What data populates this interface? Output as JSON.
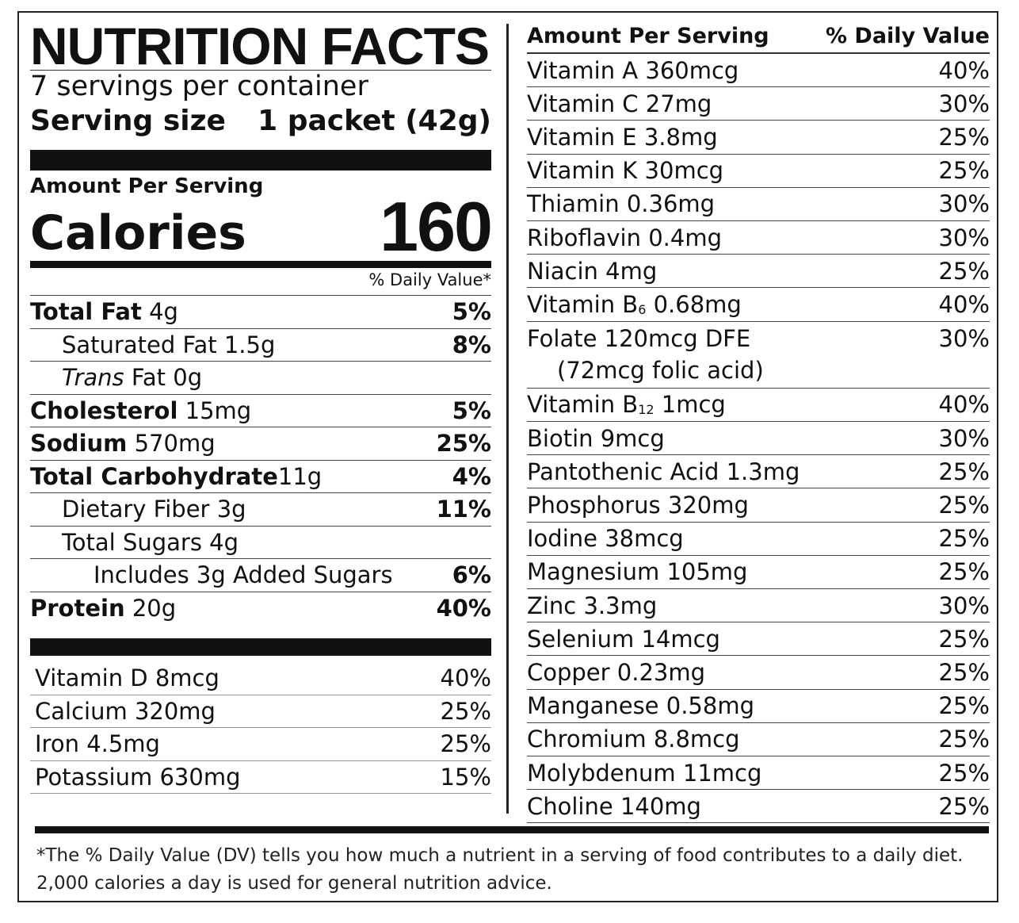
{
  "label": {
    "title": "NUTRITION FACTS",
    "servings_per_container": "7 servings per container",
    "serving_size_label": "Serving size",
    "serving_size_value": "1 packet (42g)",
    "amount_per_serving": "Amount Per Serving",
    "calories_label": "Calories",
    "calories_value": "160",
    "daily_value_header": "% Daily Value*"
  },
  "nutrients": [
    {
      "name": "Total Fat",
      "amount": "4g",
      "dv": "5%"
    },
    {
      "name": "Saturated Fat",
      "amount": "1.5g",
      "dv": "8%"
    },
    {
      "name_italic": "Trans",
      "name": "Fat",
      "amount": "0g",
      "dv": ""
    },
    {
      "name": "Cholesterol",
      "amount": "15mg",
      "dv": "5%"
    },
    {
      "name": "Sodium",
      "amount": "570mg",
      "dv": "25%"
    },
    {
      "name": "Total Carbohydrate",
      "amount": "11g",
      "dv": "4%"
    },
    {
      "name": "Dietary Fiber",
      "amount": "3g",
      "dv": "11%"
    },
    {
      "name": "Total Sugars",
      "amount": "4g",
      "dv": ""
    },
    {
      "name": "Includes 3g Added Sugars",
      "amount": "",
      "dv": "6%"
    },
    {
      "name": "Protein",
      "amount": "20g",
      "dv": "40%"
    }
  ],
  "minerals_left": [
    {
      "name": "Vitamin D",
      "amount": "8mcg",
      "dv": "40%"
    },
    {
      "name": "Calcium",
      "amount": "320mg",
      "dv": "25%"
    },
    {
      "name": "Iron",
      "amount": "4.5mg",
      "dv": "25%"
    },
    {
      "name": "Potassium",
      "amount": "630mg",
      "dv": "15%"
    }
  ],
  "right_header": {
    "left": "Amount Per Serving",
    "right": "% Daily Value"
  },
  "vitamins": [
    {
      "name": "Vitamin A",
      "amount": "360mcg",
      "dv": "40%"
    },
    {
      "name": "Vitamin C",
      "amount": "27mg",
      "dv": "30%"
    },
    {
      "name": "Vitamin E",
      "amount": "3.8mg",
      "dv": "25%"
    },
    {
      "name": "Vitamin K",
      "amount": "30mcg",
      "dv": "25%"
    },
    {
      "name": "Thiamin",
      "amount": "0.36mg",
      "dv": "30%"
    },
    {
      "name": "Riboflavin",
      "amount": "0.4mg",
      "dv": "30%"
    },
    {
      "name": "Niacin",
      "amount": "4mg",
      "dv": "25%"
    },
    {
      "name": "Vitamin B",
      "sub": "6",
      "amount": "0.68mg",
      "dv": "40%"
    },
    {
      "name": "Folate",
      "amount": "120mcg DFE",
      "dv": "30%",
      "note": "(72mcg folic acid)"
    },
    {
      "name": "Vitamin B",
      "sub": "12",
      "amount": "1mcg",
      "dv": "40%"
    },
    {
      "name": "Biotin",
      "amount": "9mcg",
      "dv": "30%"
    },
    {
      "name": "Pantothenic Acid",
      "amount": "1.3mg",
      "dv": "25%"
    },
    {
      "name": "Phosphorus",
      "amount": "320mg",
      "dv": "25%"
    },
    {
      "name": "Iodine",
      "amount": "38mcg",
      "dv": "25%"
    },
    {
      "name": "Magnesium",
      "amount": "105mg",
      "dv": "25%"
    },
    {
      "name": "Zinc",
      "amount": "3.3mg",
      "dv": "30%"
    },
    {
      "name": "Selenium",
      "amount": "14mcg",
      "dv": "25%"
    },
    {
      "name": "Copper",
      "amount": "0.23mg",
      "dv": "25%"
    },
    {
      "name": "Manganese",
      "amount": "0.58mg",
      "dv": "25%"
    },
    {
      "name": "Chromium",
      "amount": "8.8mcg",
      "dv": "25%"
    },
    {
      "name": "Molybdenum",
      "amount": "11mcg",
      "dv": "25%"
    },
    {
      "name": "Choline",
      "amount": "140mg",
      "dv": "25%"
    }
  ],
  "footnote": "*The % Daily Value (DV) tells you how much a nutrient in a serving of food contributes to a daily diet. 2,000 calories a day is used for general nutrition advice."
}
